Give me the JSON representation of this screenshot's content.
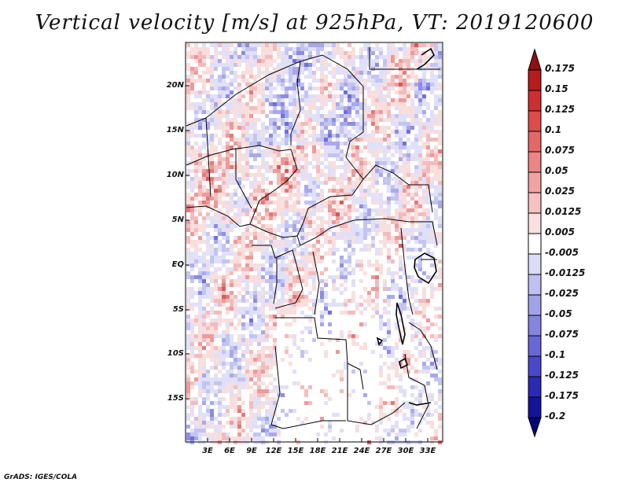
{
  "title": "Vertical velocity [m/s] at 925hPa, VT: 2019120600",
  "credit": "GrADS: IGES/COLA",
  "map": {
    "lat_labels": [
      "20N",
      "15N",
      "10N",
      "5N",
      "EQ",
      "5S",
      "10S",
      "15S"
    ],
    "lon_labels": [
      "3E",
      "6E",
      "9E",
      "12E",
      "15E",
      "18E",
      "21E",
      "24E",
      "27E",
      "30E",
      "33E"
    ]
  },
  "colorbar": {
    "labels": [
      "0.175",
      "0.15",
      "0.125",
      "0.1",
      "0.075",
      "0.05",
      "0.025",
      "0.0125",
      "0.005",
      "-0.005",
      "-0.0125",
      "-0.025",
      "-0.05",
      "-0.075",
      "-0.1",
      "-0.125",
      "-0.175",
      "-0.2"
    ],
    "colors": [
      "#8f1010",
      "#b51c1c",
      "#cc3030",
      "#dd4b4b",
      "#e56767",
      "#ec8585",
      "#f1a3a3",
      "#f6c1c1",
      "#fae0e0",
      "#ffffff",
      "#dcdcf7",
      "#bfbff0",
      "#a2a2e8",
      "#8585e0",
      "#6767d6",
      "#4848c8",
      "#2a2ab2",
      "#14149a",
      "#05057a"
    ]
  },
  "colors": {
    "positive": "#e03a3a",
    "negative": "#3a3ae0",
    "border": "#000000"
  }
}
